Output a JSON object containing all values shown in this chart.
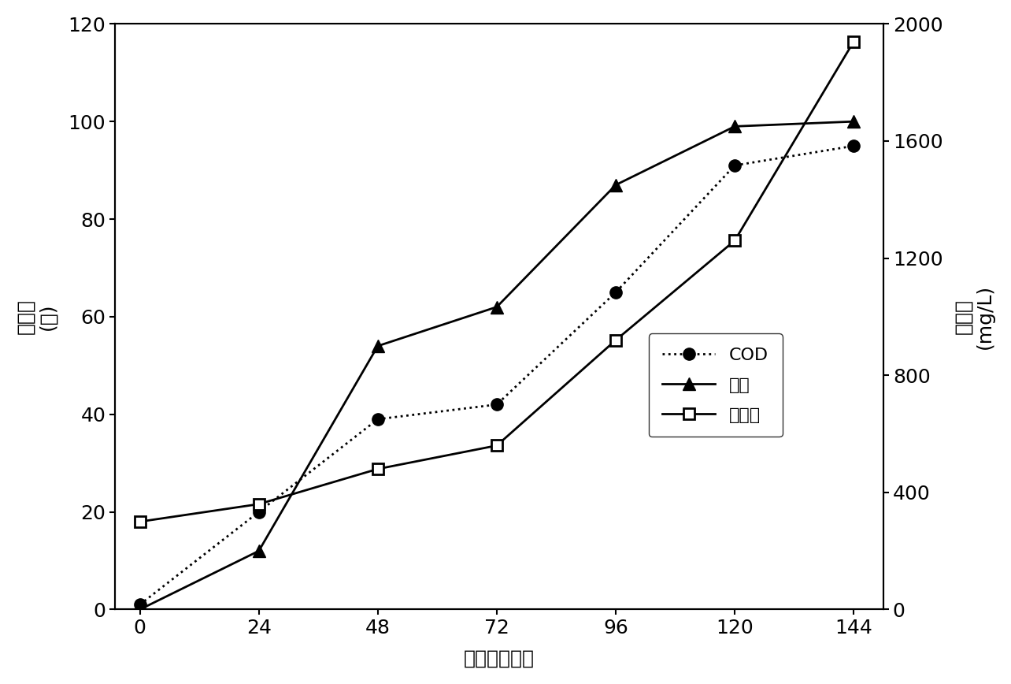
{
  "x": [
    0,
    24,
    48,
    72,
    96,
    120,
    144
  ],
  "cod_y": [
    1,
    20,
    39,
    42,
    65,
    91,
    95
  ],
  "zongtan_y": [
    0,
    12,
    54,
    62,
    87,
    99,
    100
  ],
  "biomass_y": [
    300,
    360,
    480,
    560,
    920,
    1260,
    1940
  ],
  "left_ylim": [
    0,
    120
  ],
  "right_ylim": [
    0,
    2000
  ],
  "left_yticks": [
    0,
    20,
    40,
    60,
    80,
    100,
    120
  ],
  "right_yticks": [
    0,
    400,
    800,
    1200,
    1600,
    2000
  ],
  "xticks": [
    0,
    24,
    48,
    72,
    96,
    120,
    144
  ],
  "xlabel": "时间（小时）",
  "ylabel_left_line1": "去除率",
  "ylabel_left_line2": "(％)",
  "ylabel_right_line1": "生物量",
  "ylabel_right_line2": "(mg/L)",
  "legend_cod": "COD",
  "legend_zongtan": "总糖",
  "legend_biomass": "生物量",
  "line_color": "#000000",
  "bg_color": "#ffffff",
  "tick_fontsize": 18,
  "label_fontsize": 18,
  "legend_fontsize": 16,
  "axis_fontsize": 18
}
